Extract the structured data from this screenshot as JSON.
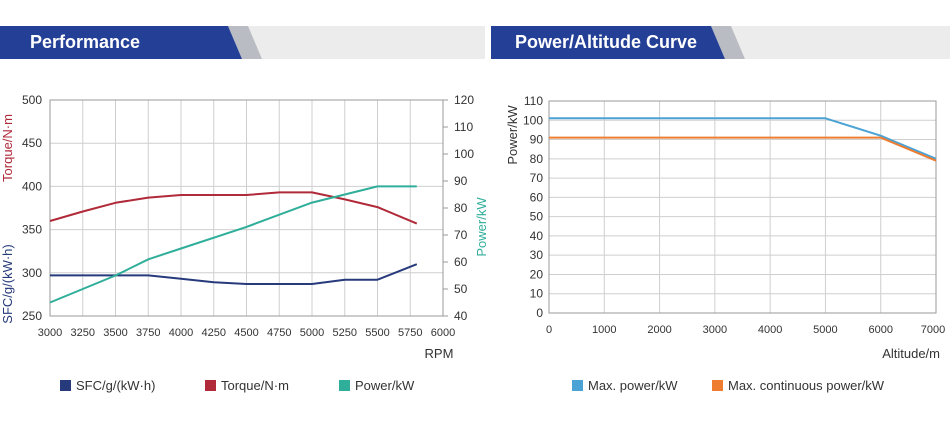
{
  "panels": {
    "left_title": "Performance",
    "right_title": "Power/Altitude Curve"
  },
  "colors": {
    "banner_blue": "#243f96",
    "banner_gray": "#b9bcc2",
    "banner_light": "#ececec",
    "sfc": "#263a7c",
    "torque": "#b02a39",
    "power": "#2fae9a",
    "max_power": "#4aa3d4",
    "max_cont_power": "#ee7d31"
  },
  "chart_data": [
    {
      "type": "line",
      "title": "Performance",
      "xlabel": "RPM",
      "x_ticks": [
        3000,
        3250,
        3500,
        3750,
        4000,
        4250,
        4500,
        4750,
        5000,
        5250,
        5500,
        5750,
        6000
      ],
      "xlim": [
        3000,
        6000
      ],
      "y_left_label_top": "Torque/N·m",
      "y_left_label_bottom": "SFC/g/(kW·h)",
      "y_left_ticks": [
        250,
        300,
        350,
        400,
        450,
        500
      ],
      "y_left_lim": [
        250,
        500
      ],
      "y_right_label": "Power/kW",
      "y_right_ticks": [
        40,
        50,
        60,
        70,
        80,
        90,
        100,
        110,
        120
      ],
      "y_right_lim": [
        40,
        120
      ],
      "grid": true,
      "legend_position": "bottom",
      "series": [
        {
          "name": "SFC/g/(kW·h)",
          "axis": "left",
          "color": "#263a7c",
          "x": [
            3000,
            3500,
            3750,
            4000,
            4250,
            4500,
            4750,
            5000,
            5250,
            5500,
            5800
          ],
          "y": [
            297,
            297,
            297,
            293,
            289,
            287,
            287,
            287,
            292,
            292,
            310
          ]
        },
        {
          "name": "Torque/N·m",
          "axis": "left",
          "color": "#b02a39",
          "x": [
            3000,
            3250,
            3500,
            3750,
            4000,
            4250,
            4500,
            4750,
            5000,
            5250,
            5500,
            5800
          ],
          "y": [
            360,
            371,
            381,
            387,
            390,
            390,
            390,
            393,
            393,
            385,
            376,
            357
          ]
        },
        {
          "name": "Power/kW",
          "axis": "right",
          "color": "#2fae9a",
          "x": [
            3000,
            3500,
            3750,
            4000,
            4500,
            5000,
            5500,
            5800
          ],
          "y": [
            45,
            55,
            61,
            65,
            73,
            82,
            88,
            88
          ]
        }
      ]
    },
    {
      "type": "line",
      "title": "Power/Altitude Curve",
      "xlabel": "Altitude/m",
      "ylabel": "Power/kW",
      "x_ticks": [
        0,
        1000,
        2000,
        3000,
        4000,
        5000,
        6000,
        7000
      ],
      "xlim": [
        0,
        7000
      ],
      "y_ticks": [
        0,
        10,
        20,
        30,
        40,
        50,
        60,
        70,
        80,
        90,
        100,
        110
      ],
      "ylim": [
        0,
        110
      ],
      "grid": true,
      "legend_position": "bottom",
      "series": [
        {
          "name": "Max. power/kW",
          "color": "#4aa3d4",
          "x": [
            0,
            5000,
            6000,
            7000
          ],
          "y": [
            101,
            101,
            92,
            80
          ]
        },
        {
          "name": "Max. continuous power/kW",
          "color": "#ee7d31",
          "x": [
            0,
            6000,
            7000
          ],
          "y": [
            91,
            91,
            79
          ]
        }
      ]
    }
  ]
}
